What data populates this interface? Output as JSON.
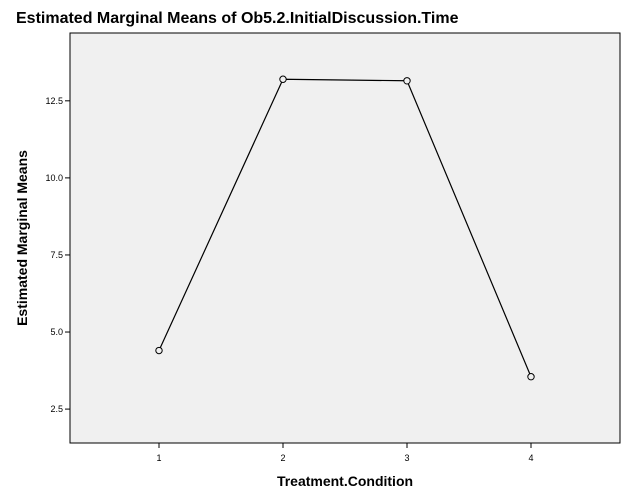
{
  "chart_data": {
    "type": "line",
    "title": "Estimated Marginal Means of Ob5.2.InitialDiscussion.Time",
    "xlabel": "Treatment.Condition",
    "ylabel": "Estimated Marginal Means",
    "categories": [
      "1",
      "2",
      "3",
      "4"
    ],
    "series": [
      {
        "values": [
          4.4,
          13.2,
          13.15,
          3.55
        ]
      }
    ],
    "y_ticks": [
      "2.5",
      "5.0",
      "7.5",
      "10.0",
      "12.5"
    ],
    "y_tick_values": [
      2.5,
      5.0,
      7.5,
      10.0,
      12.5
    ],
    "ylim": [
      1.4,
      14.7
    ],
    "marker": "open-circle",
    "grid": false,
    "colors": {
      "plot_background": "#f0f0f0",
      "line": "#000000"
    }
  }
}
